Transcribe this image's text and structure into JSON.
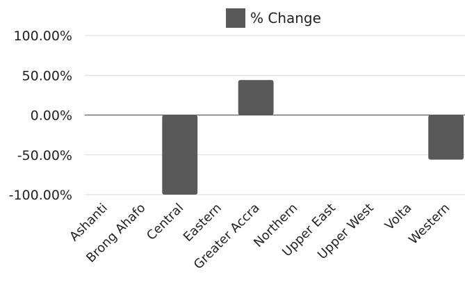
{
  "chart_data": {
    "type": "bar",
    "title": "",
    "xlabel": "",
    "ylabel": "",
    "categories": [
      "Ashanti",
      "Brong Ahafo",
      "Central",
      "Eastern",
      "Greater Accra",
      "Northern",
      "Upper East",
      "Upper West",
      "Volta",
      "Western"
    ],
    "series": [
      {
        "name": "% Change",
        "color": "#595959",
        "values": [
          0,
          0,
          -100,
          0,
          44,
          0,
          0,
          0,
          0,
          -56
        ]
      }
    ],
    "ylim": [
      -100,
      100
    ],
    "yticks": [
      100,
      50,
      0,
      -50,
      -100
    ],
    "ytick_labels": [
      "100.00%",
      "50.00%",
      "0.00%",
      "-50.00%",
      "-100.00%"
    ],
    "grid": true,
    "legend_position": "top"
  }
}
